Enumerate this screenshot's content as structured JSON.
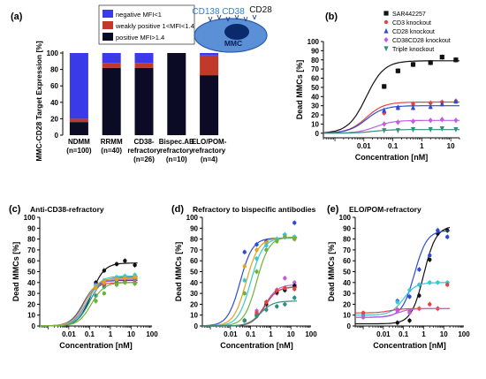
{
  "chart_data": [
    {
      "panel": "(a)",
      "type": "bar",
      "stacked": true,
      "ylabel": "MMC-CD28 Target Expression [%]",
      "ylim": [
        0,
        100
      ],
      "yticks": [
        0,
        20,
        40,
        60,
        80,
        100
      ],
      "categories": [
        {
          "line1": "NDMM",
          "line2": "(n=100)"
        },
        {
          "line1": "RRMM",
          "line2": "(n=40)"
        },
        {
          "line1": "CD38-",
          "line2": "refractory",
          "line3": "(n=26)"
        },
        {
          "line1": "Bispec.AB",
          "line2": "refractory",
          "line3": "(n=10)"
        },
        {
          "line1": "ELO/POM-",
          "line2": "refractory",
          "line3": "(n=4)"
        }
      ],
      "series": [
        {
          "name": "positive MFI>1.4",
          "color": "#0b0b26",
          "values": [
            16,
            82,
            82,
            100,
            73
          ]
        },
        {
          "name": "weakly positive 1<MFI<1.4",
          "color": "#c0392b",
          "values": [
            4,
            6,
            6,
            0,
            24
          ]
        },
        {
          "name": "negative MFI<1",
          "color": "#3a3ae8",
          "values": [
            80,
            12,
            12,
            0,
            3
          ]
        }
      ],
      "legend_position": "top",
      "cell_diagram": {
        "labels": [
          "CD138",
          "CD38",
          "CD28"
        ],
        "cell_label": "MMC"
      }
    },
    {
      "panel": "(b)",
      "type": "scatter",
      "xscale": "log",
      "xlabel": "Concentration [nM]",
      "ylabel": "Dead MMCs [%]",
      "xlim": [
        0.0004,
        20
      ],
      "ylim": [
        -5,
        100
      ],
      "xticks": [
        0.01,
        0.1,
        1,
        10
      ],
      "yticks": [
        0,
        10,
        20,
        30,
        40,
        50,
        60,
        70,
        80,
        90,
        100
      ],
      "legend_position": "top-right",
      "series": [
        {
          "name": "SAR442257",
          "color": "#111111",
          "marker": "square",
          "top": 79,
          "ec50": 0.012,
          "x": [
            0.05,
            0.15,
            0.5,
            2,
            5,
            15
          ],
          "y": [
            51,
            68,
            75,
            77,
            83,
            80
          ]
        },
        {
          "name": "CD3 knockout",
          "color": "#e04545",
          "marker": "circle",
          "top": 34,
          "ec50": 0.012,
          "x": [
            0.05,
            0.15,
            0.5,
            2,
            5,
            15
          ],
          "y": [
            22,
            28,
            32,
            33,
            34,
            35
          ]
        },
        {
          "name": "CD28 knockout",
          "color": "#2e4bd6",
          "marker": "triangle",
          "top": 30,
          "ec50": 0.012,
          "x": [
            0.05,
            0.15,
            0.5,
            2,
            5,
            15
          ],
          "y": [
            25,
            28,
            28,
            29,
            32,
            35
          ]
        },
        {
          "name": "CD38CD28 knockout",
          "color": "#c060e0",
          "marker": "diamond",
          "top": 14,
          "ec50": 0.025,
          "x": [
            0.05,
            0.15,
            0.5,
            2,
            5,
            15
          ],
          "y": [
            10,
            12,
            13,
            14,
            15,
            14
          ]
        },
        {
          "name": "Triple knockout",
          "color": "#2f8f7f",
          "marker": "tri-down",
          "top": 4,
          "ec50": 0.02,
          "x": [
            0.05,
            0.15,
            0.5,
            2,
            5,
            15
          ],
          "y": [
            3,
            3,
            4,
            4,
            5,
            4
          ]
        }
      ]
    },
    {
      "panel": "(c)",
      "type": "scatter",
      "title": "Anti-CD38-refractory",
      "xscale": "log",
      "xlabel": "Concentration [nM]",
      "ylabel": "Dead MMCs [%]",
      "xlim": [
        0.0004,
        100
      ],
      "ylim": [
        0,
        100
      ],
      "xticks": [
        0.01,
        0.1,
        1,
        10,
        100
      ],
      "yticks": [
        0,
        10,
        20,
        30,
        40,
        50,
        60,
        70,
        80,
        90,
        100
      ],
      "series": [
        {
          "color": "#111111",
          "top": 58,
          "ec50": 0.12,
          "x": [
            0.2,
            0.5,
            2,
            5,
            15
          ],
          "y": [
            40,
            51,
            57,
            60,
            56
          ]
        },
        {
          "color": "#e04545",
          "top": 40,
          "ec50": 0.05,
          "x": [
            0.2,
            0.5,
            2,
            5,
            15
          ],
          "y": [
            36,
            38,
            40,
            41,
            40
          ]
        },
        {
          "color": "#2e4bd6",
          "top": 42,
          "ec50": 0.05,
          "x": [
            0.2,
            0.5,
            2,
            5,
            15
          ],
          "y": [
            38,
            40,
            42,
            42,
            43
          ]
        },
        {
          "color": "#c060e0",
          "top": 43,
          "ec50": 0.07,
          "x": [
            0.2,
            0.5,
            2,
            5,
            15
          ],
          "y": [
            37,
            40,
            42,
            44,
            43
          ]
        },
        {
          "color": "#2f8f7f",
          "top": 45,
          "ec50": 0.1,
          "x": [
            0.2,
            0.5,
            2,
            5,
            15
          ],
          "y": [
            28,
            36,
            42,
            45,
            44
          ]
        },
        {
          "color": "#39c6d6",
          "top": 46,
          "ec50": 0.08,
          "x": [
            0.2,
            0.5,
            2,
            5,
            15
          ],
          "y": [
            37,
            42,
            45,
            46,
            47
          ]
        },
        {
          "color": "#e6a21a",
          "top": 44,
          "ec50": 0.06,
          "x": [
            0.2,
            0.5,
            2,
            5,
            15
          ],
          "y": [
            35,
            40,
            43,
            44,
            45
          ]
        },
        {
          "color": "#6bb33a",
          "top": 40,
          "ec50": 0.12,
          "x": [
            0.2,
            0.5,
            2,
            5,
            15
          ],
          "y": [
            23,
            30,
            38,
            40,
            39
          ]
        }
      ]
    },
    {
      "panel": "(d)",
      "type": "scatter",
      "title": "Refractory to bispecific antibodies",
      "xscale": "log",
      "xlabel": "Concentration [nM]",
      "ylabel": "Dead MMCs [%]",
      "xlim": [
        0.0004,
        100
      ],
      "ylim": [
        0,
        100
      ],
      "xticks": [
        0.01,
        0.1,
        1,
        10,
        100
      ],
      "yticks": [
        0,
        10,
        20,
        30,
        40,
        50,
        60,
        70,
        80,
        90,
        100
      ],
      "series": [
        {
          "color": "#2e4bd6",
          "top": 81,
          "ec50": 0.03,
          "x": [
            0.05,
            0.2,
            0.6,
            2,
            5,
            15
          ],
          "y": [
            68,
            75,
            78,
            80,
            84,
            95
          ]
        },
        {
          "color": "#e6a21a",
          "top": 81,
          "ec50": 0.06,
          "x": [
            0.05,
            0.2,
            0.6,
            2,
            5,
            15
          ],
          "y": [
            55,
            70,
            76,
            80,
            82,
            80
          ]
        },
        {
          "color": "#39c6d6",
          "top": 81,
          "ec50": 0.1,
          "x": [
            0.05,
            0.2,
            0.6,
            2,
            5,
            15
          ],
          "y": [
            42,
            62,
            74,
            80,
            84,
            82
          ]
        },
        {
          "color": "#6bb33a",
          "top": 82,
          "ec50": 0.2,
          "x": [
            0.05,
            0.2,
            0.6,
            2,
            5,
            15
          ],
          "y": [
            30,
            50,
            70,
            78,
            82,
            80
          ]
        },
        {
          "color": "#c060e0",
          "top": 38,
          "ec50": 0.5,
          "x": [
            0.05,
            0.2,
            0.6,
            2,
            5,
            15
          ],
          "y": [
            5,
            14,
            22,
            30,
            44,
            40
          ]
        },
        {
          "color": "#111111",
          "top": 36,
          "ec50": 0.5,
          "x": [
            0.05,
            0.2,
            0.6,
            2,
            5,
            15
          ],
          "y": [
            5,
            10,
            20,
            31,
            33,
            37
          ]
        },
        {
          "color": "#e04545",
          "top": 36,
          "ec50": 0.5,
          "x": [
            0.05,
            0.2,
            0.6,
            2,
            5,
            15
          ],
          "y": [
            5,
            12,
            22,
            33,
            35,
            34
          ]
        },
        {
          "color": "#2f8f7f",
          "top": 23,
          "ec50": 0.3,
          "x": [
            0.05,
            0.2,
            0.6,
            2,
            5,
            15
          ],
          "y": [
            5,
            9,
            15,
            18,
            20,
            26
          ]
        }
      ]
    },
    {
      "panel": "(e)",
      "type": "scatter",
      "title": "ELO/POM-refractory",
      "xscale": "log",
      "xlabel": "Concentration [nM]",
      "ylabel": "Dead MMCs [%]",
      "xlim": [
        0.0004,
        100
      ],
      "ylim": [
        0,
        100
      ],
      "xticks": [
        0.01,
        0.1,
        1,
        10,
        100
      ],
      "yticks": [
        0,
        10,
        20,
        30,
        40,
        50,
        60,
        70,
        80,
        90,
        100
      ],
      "series": [
        {
          "color": "#111111",
          "top": 92,
          "bottom": 2,
          "ec50": 1.0,
          "x": [
            0.05,
            0.2,
            0.6,
            2,
            5,
            15
          ],
          "y": [
            3,
            5,
            28,
            61,
            85,
            88
          ]
        },
        {
          "color": "#2e4bd6",
          "top": 88,
          "bottom": 8,
          "ec50": 0.35,
          "x": [
            0.001,
            0.05,
            0.2,
            0.6,
            2,
            5,
            15
          ],
          "y": [
            10,
            23,
            27,
            52,
            65,
            88,
            82
          ]
        },
        {
          "color": "#39c6d6",
          "top": 40,
          "bottom": 10,
          "ec50": 0.1,
          "x": [
            0.05,
            0.2,
            0.6,
            2,
            5,
            15
          ],
          "y": [
            22,
            33,
            38,
            40,
            40,
            40
          ]
        },
        {
          "color": "#e04545",
          "top": 16,
          "bottom": 12,
          "ec50": 0.02,
          "x": [
            0.001,
            0.05,
            0.2,
            0.6,
            2,
            5,
            15
          ],
          "y": [
            12,
            15,
            13,
            16,
            20,
            16,
            38
          ]
        },
        {
          "color": "#c060e0",
          "top": 16,
          "bottom": 8,
          "ec50": 0.05,
          "x": [
            0.001,
            0.05,
            0.2
          ],
          "y": [
            8,
            14,
            12
          ]
        }
      ]
    }
  ]
}
